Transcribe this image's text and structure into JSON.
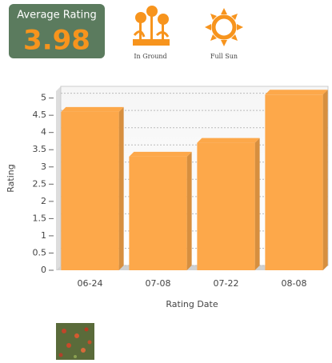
{
  "rating": {
    "label": "Average Rating",
    "value": "3.98"
  },
  "icons": [
    {
      "label": "In Ground"
    },
    {
      "label": "Full Sun"
    }
  ],
  "chart_data": {
    "type": "bar",
    "categories": [
      "06-24",
      "07-08",
      "07-22",
      "08-08"
    ],
    "values": [
      4.6,
      3.3,
      3.7,
      5.1
    ],
    "color": "#fda84a",
    "x_label": "Rating Date",
    "y_label": "Rating",
    "ylim": [
      0,
      5.2
    ],
    "yticks": [
      0,
      0.5,
      1,
      1.5,
      2,
      2.5,
      3,
      3.5,
      4,
      4.5,
      5
    ],
    "grid": true
  }
}
